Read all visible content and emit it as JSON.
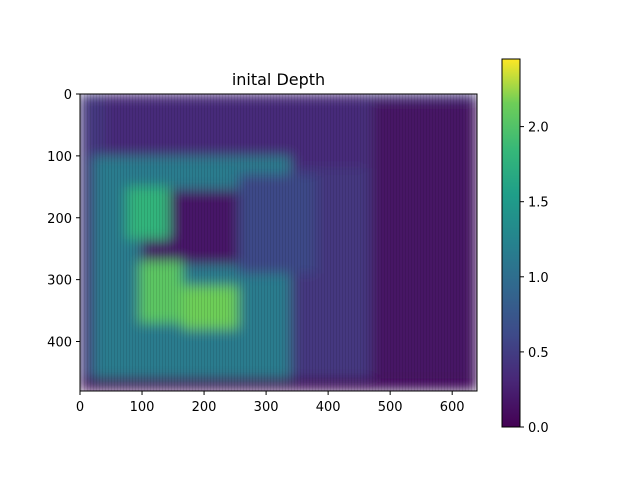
{
  "chart_data": {
    "type": "heatmap",
    "title": "inital Depth",
    "xlabel": "",
    "ylabel": "",
    "xlim": [
      0,
      640
    ],
    "ylim": [
      480,
      0
    ],
    "x_ticks": [
      "0",
      "100",
      "200",
      "300",
      "400",
      "500",
      "600"
    ],
    "y_ticks": [
      "0",
      "100",
      "200",
      "300",
      "400"
    ],
    "colorbar": {
      "colormap": "viridis",
      "range": [
        0.0,
        2.45
      ],
      "ticks": [
        "0.0",
        "0.5",
        "1.0",
        "1.5",
        "2.0"
      ]
    },
    "grid": false,
    "approx_regions": [
      {
        "desc": "background",
        "x": [
          0,
          640
        ],
        "y": [
          0,
          480
        ],
        "value": 0.45
      },
      {
        "desc": "upper wall",
        "x": [
          40,
          460
        ],
        "y": [
          0,
          120
        ],
        "value": 0.35
      },
      {
        "desc": "left green region",
        "x": [
          20,
          340
        ],
        "y": [
          100,
          480
        ],
        "value": 1.15
      },
      {
        "desc": "tv screen",
        "x": [
          100,
          255
        ],
        "y": [
          155,
          275
        ],
        "value": 0.18
      },
      {
        "desc": "yellow patch left",
        "x": [
          95,
          165
        ],
        "y": [
          270,
          370
        ],
        "value": 2.05
      },
      {
        "desc": "yellow patch right",
        "x": [
          165,
          255
        ],
        "y": [
          310,
          380
        ],
        "value": 2.15
      },
      {
        "desc": "yellow patch upper",
        "x": [
          75,
          145
        ],
        "y": [
          150,
          235
        ],
        "value": 1.8
      },
      {
        "desc": "middle wall",
        "x": [
          255,
          380
        ],
        "y": [
          130,
          290
        ],
        "value": 0.6
      },
      {
        "desc": "right dark region",
        "x": [
          470,
          640
        ],
        "y": [
          10,
          480
        ],
        "value": 0.15
      },
      {
        "desc": "bottom strip",
        "x": [
          0,
          640
        ],
        "y": [
          460,
          480
        ],
        "value": 0.1
      }
    ]
  }
}
